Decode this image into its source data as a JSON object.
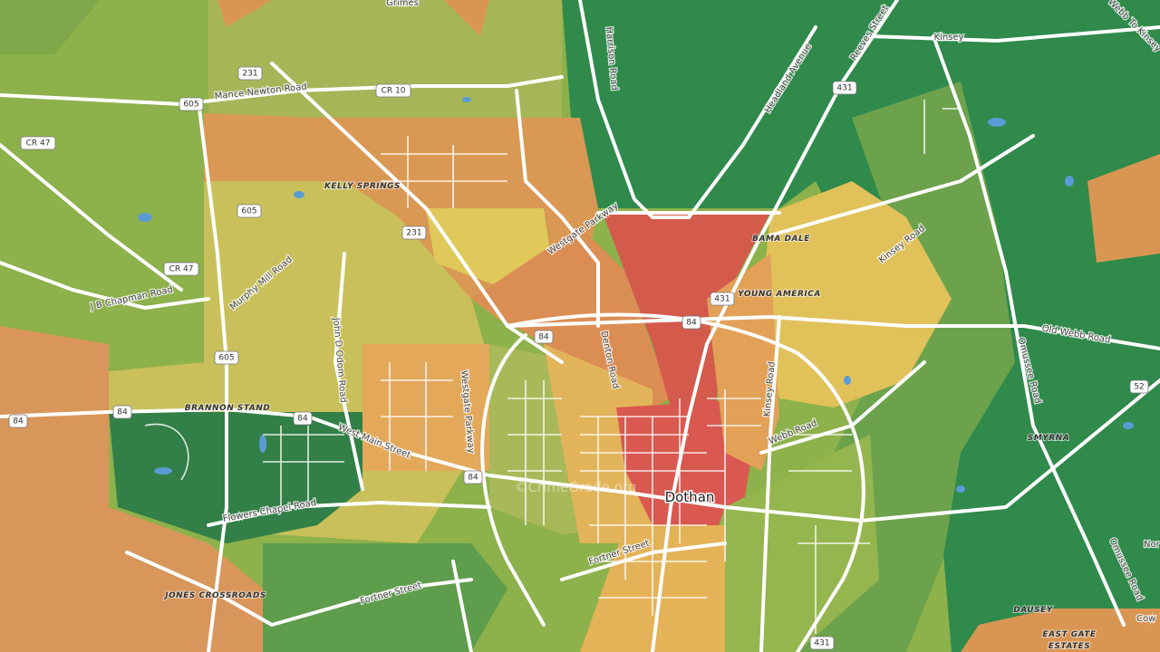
{
  "places": [
    "Grimes",
    "Kinsey",
    "KELLY SPRINGS",
    "BAMA DALE",
    "YOUNG AMERICA",
    "BRANNON STAND",
    "SMYRNA",
    "Dothan",
    "JONES CROSSROADS",
    "DAUSEY",
    "EAST GATE",
    "ESTATES",
    "Nor",
    "Cow"
  ],
  "roads": [
    "Harrison Road",
    "Headland Avenue",
    "Reeves Street",
    "Webb To Kinsey",
    "Mance Newton Road",
    "Westgate Parkway",
    "Kinsey Road",
    "J B Chapman Road",
    "Murphy Mill Road",
    "John D Odom Road",
    "Denton Road",
    "Old Webb Road",
    "Omussee Road",
    "Kinsey Road",
    "West Main Street",
    "Westgate Parkway",
    "Webb Road",
    "Flowers Chapel Road",
    "Fortner Street",
    "Fortner Street",
    "Omussee Road"
  ],
  "shields": [
    "605",
    "CR 10",
    "231",
    "431",
    "CR 47",
    "605",
    "231",
    "CR 47",
    "84",
    "431",
    "84",
    "605",
    "84",
    "84",
    "84",
    "84",
    "52",
    "431"
  ],
  "watermark": "©CrimeGrade.org"
}
